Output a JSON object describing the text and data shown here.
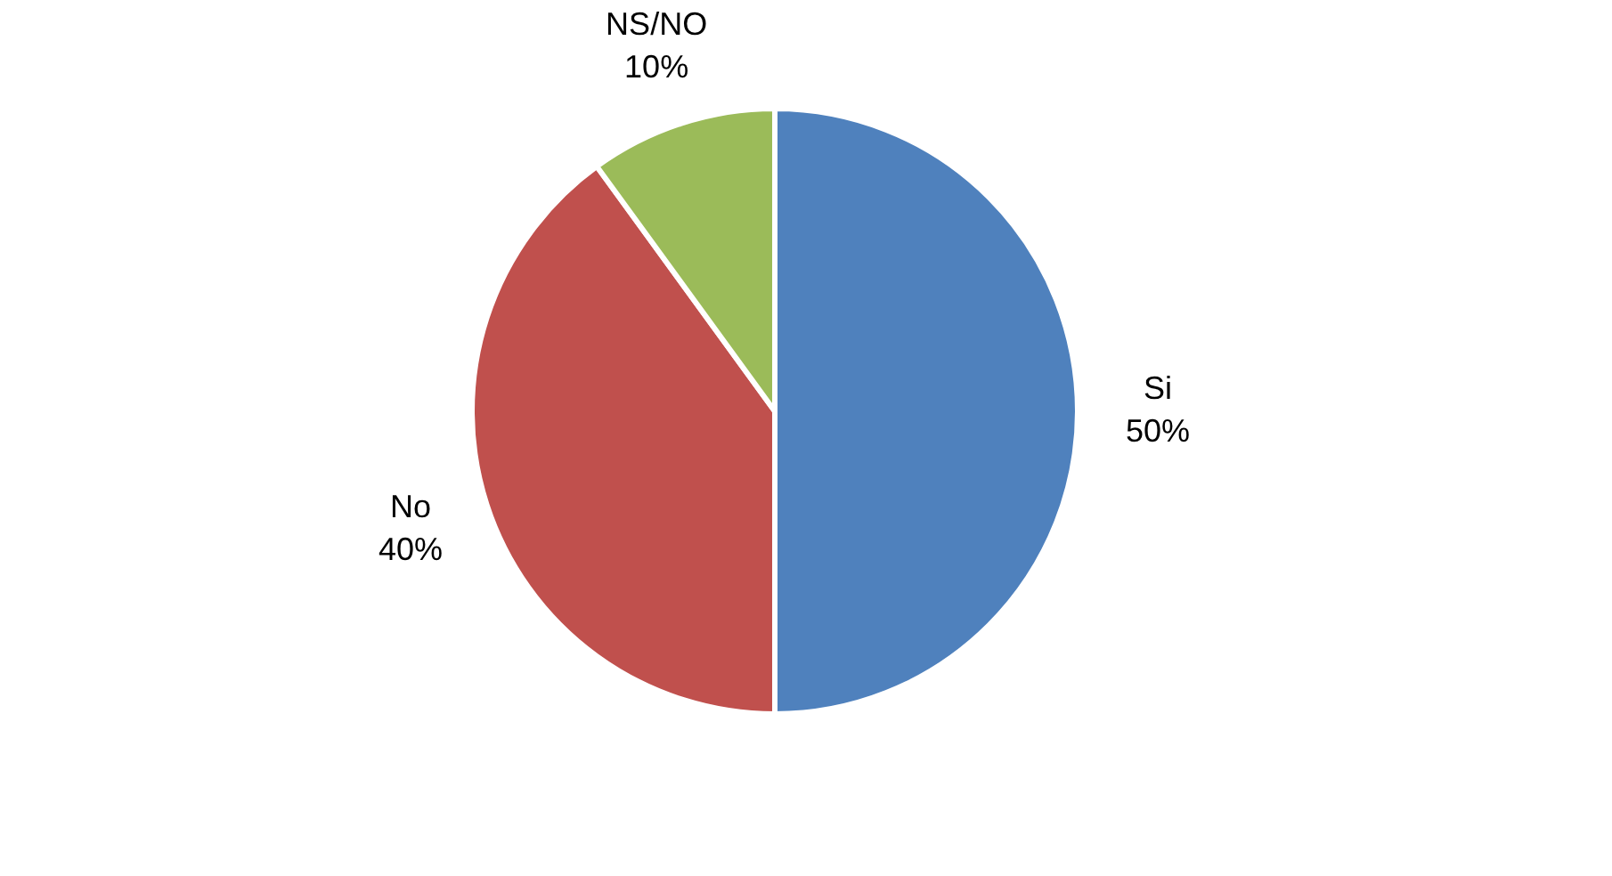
{
  "chart_data": {
    "type": "pie",
    "categories": [
      "Si",
      "No",
      "NS/NO"
    ],
    "values": [
      50,
      40,
      10
    ],
    "colors": [
      "#4f81bd",
      "#c0504d",
      "#9bbb59"
    ],
    "value_labels": [
      "50%",
      "40%",
      "10%"
    ]
  }
}
